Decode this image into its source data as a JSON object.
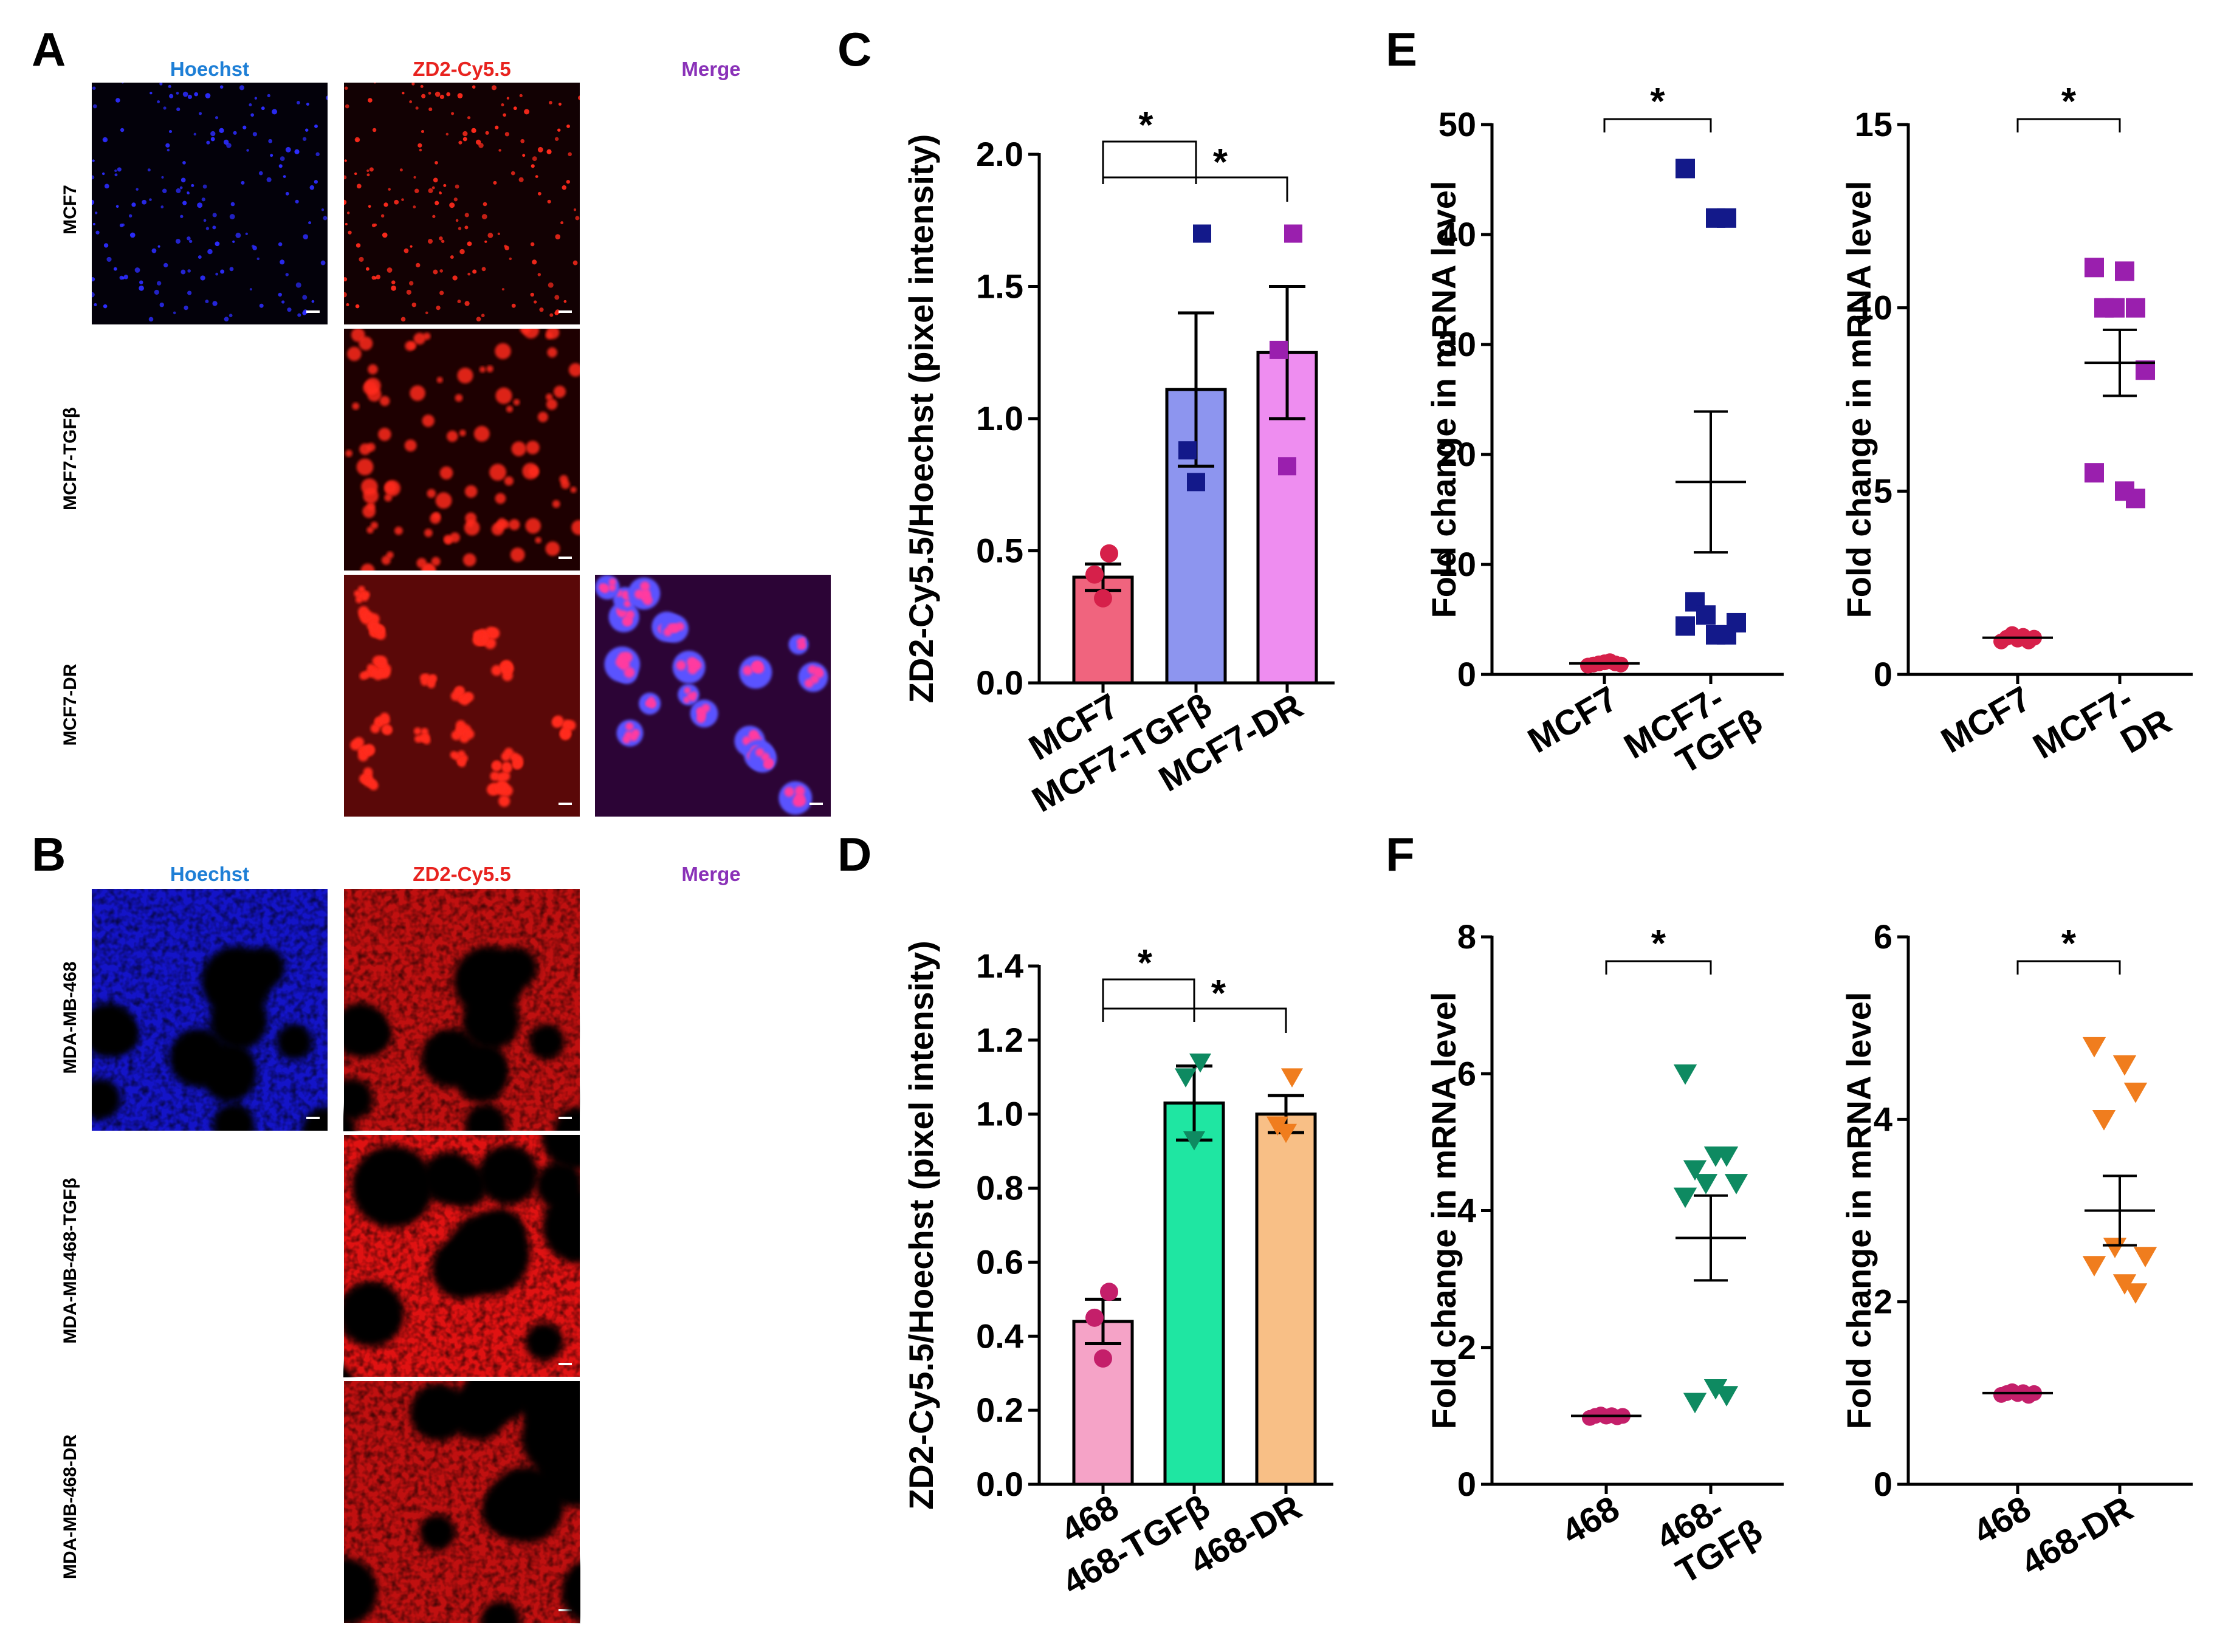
{
  "figure": {
    "panel_letters": [
      "A",
      "B",
      "C",
      "D",
      "E",
      "F"
    ],
    "colors": {
      "hoechst": "#1e7fd6",
      "cy55": "#e8231f",
      "merge": "#8a32b8",
      "mcf7_bar": "#f0647e",
      "mcf7tgf_bar": "#8d95ef",
      "mcf7dr_bar": "#ee8df0",
      "468_bar": "#f5a3c7",
      "468tgf_bar": "#1fe6a2",
      "468dr_bar": "#f8bf86",
      "pt_mcf7": "#d6204a",
      "pt_mcf7tgf": "#13198a",
      "pt_mcf7dr": "#9a1fae",
      "pt_468": "#c41f6a",
      "pt_468tgf": "#0e8a61",
      "pt_468dr": "#f07d1e"
    }
  },
  "panelA": {
    "letter": "A",
    "channels": [
      "Hoechst",
      "ZD2-Cy5.5",
      "Merge"
    ],
    "rows": [
      "MCF7",
      "MCF7-TGFβ",
      "MCF7-DR"
    ]
  },
  "panelB": {
    "letter": "B",
    "channels": [
      "Hoechst",
      "ZD2-Cy5.5",
      "Merge"
    ],
    "rows": [
      "MDA-MB-468",
      "MDA-MB-468-TGFβ",
      "MDA-MB-468-DR"
    ]
  },
  "chart_data": [
    {
      "id": "C",
      "type": "bar",
      "ylabel": "ZD2-Cy5.5/Hoechst  (pixel intensity)",
      "ylim": [
        0,
        2.0
      ],
      "yticks": [
        "0.0",
        "0.5",
        "1.0",
        "1.5",
        "2.0"
      ],
      "categories": [
        "MCF7",
        "MCF7-TGFβ",
        "MCF7-DR"
      ],
      "means": [
        0.4,
        1.11,
        1.25
      ],
      "sem": [
        0.05,
        0.29,
        0.25
      ],
      "points": [
        [
          0.49,
          0.41,
          0.32
        ],
        [
          1.7,
          0.88,
          0.76
        ],
        [
          1.7,
          1.26,
          0.82
        ]
      ],
      "markers": [
        "circle",
        "square",
        "square"
      ],
      "significance": [
        "*",
        "*"
      ]
    },
    {
      "id": "D",
      "type": "bar",
      "ylabel": "ZD2-Cy5.5/Hoechst  (pixel intensity)",
      "ylim": [
        0,
        1.4
      ],
      "yticks": [
        "0.0",
        "0.2",
        "0.4",
        "0.6",
        "0.8",
        "1.0",
        "1.2",
        "1.4"
      ],
      "categories": [
        "468",
        "468-TGFβ",
        "468-DR"
      ],
      "means": [
        0.44,
        1.03,
        1.0
      ],
      "sem": [
        0.06,
        0.1,
        0.05
      ],
      "points": [
        [
          0.52,
          0.45,
          0.34
        ],
        [
          1.14,
          1.1,
          0.93
        ],
        [
          1.1,
          0.97,
          0.95
        ]
      ],
      "markers": [
        "circle",
        "triangle-down",
        "triangle-down"
      ],
      "significance": [
        "*",
        "*"
      ]
    },
    {
      "id": "E1",
      "type": "scatter",
      "ylabel": "Fold change in mRNA level",
      "ylim": [
        0,
        50
      ],
      "yticks": [
        "0",
        "10",
        "20",
        "30",
        "40",
        "50"
      ],
      "categories": [
        "MCF7",
        "MCF7-TGFβ"
      ],
      "mean": [
        1.0,
        17.5
      ],
      "sem": [
        0.1,
        6.4
      ],
      "points": [
        [
          0.8,
          0.9,
          1.0,
          1.1,
          1.2,
          1.0,
          0.9
        ],
        [
          46,
          41.5,
          41.5,
          6.6,
          5.4,
          4.7,
          4.4,
          3.6,
          3.6
        ]
      ],
      "markers": [
        "circle",
        "square"
      ],
      "significance": "*"
    },
    {
      "id": "E2",
      "type": "scatter",
      "ylabel": "Fold change in mRNA level",
      "ylim": [
        0,
        15
      ],
      "yticks": [
        "0",
        "5",
        "10",
        "15"
      ],
      "categories": [
        "MCF7",
        "MCF7-DR"
      ],
      "mean": [
        1.0,
        8.5
      ],
      "sem": [
        0.05,
        0.9
      ],
      "points": [
        [
          0.9,
          1.0,
          1.1,
          0.95,
          1.05,
          0.9,
          1.0
        ],
        [
          11.1,
          11.0,
          10.0,
          10.0,
          10.0,
          8.3,
          5.5,
          5.0,
          4.8
        ]
      ],
      "markers": [
        "circle",
        "square"
      ],
      "significance": "*"
    },
    {
      "id": "F1",
      "type": "scatter",
      "ylabel": "Fold change in mRNA level",
      "ylim": [
        0,
        8
      ],
      "yticks": [
        "0",
        "2",
        "4",
        "6",
        "8"
      ],
      "categories": [
        "468",
        "468-TGFβ"
      ],
      "mean": [
        1.0,
        3.6
      ],
      "sem": [
        0.02,
        0.62
      ],
      "points": [
        [
          0.97,
          1.0,
          1.02,
          0.99,
          1.01,
          0.98,
          1.0
        ],
        [
          6.0,
          4.8,
          4.8,
          4.6,
          4.4,
          4.4,
          4.2,
          1.4,
          1.3,
          1.2
        ]
      ],
      "markers": [
        "circle",
        "triangle-down"
      ],
      "significance": "*"
    },
    {
      "id": "F2",
      "type": "scatter",
      "ylabel": "Fold change in mRNA level",
      "ylim": [
        0,
        6
      ],
      "yticks": [
        "0",
        "2",
        "4",
        "6"
      ],
      "categories": [
        "468",
        "468-DR"
      ],
      "mean": [
        1.0,
        3.0
      ],
      "sem": [
        0.02,
        0.38
      ],
      "points": [
        [
          0.98,
          1.0,
          1.02,
          0.99,
          1.01,
          0.97,
          1.0
        ],
        [
          4.8,
          4.6,
          4.3,
          4.0,
          2.6,
          2.5,
          2.4,
          2.2,
          2.1
        ]
      ],
      "markers": [
        "circle",
        "triangle-down"
      ],
      "significance": "*"
    }
  ]
}
